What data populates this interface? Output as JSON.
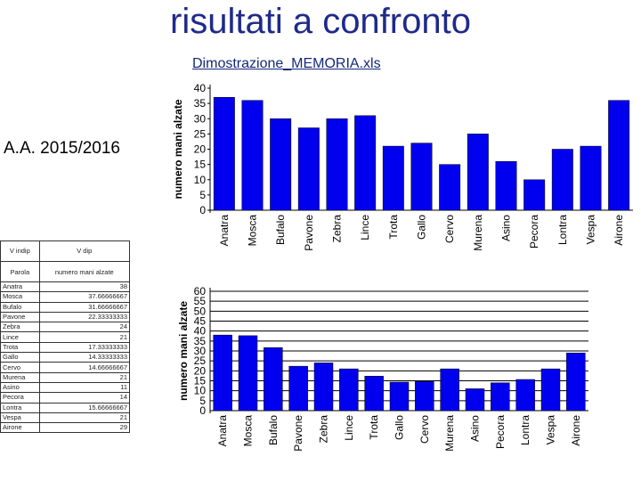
{
  "slide": {
    "title": "risultati a confronto",
    "link_text": "Dimostrazione_MEMORIA.xls",
    "year_label": "A.A. 2015/2016"
  },
  "table": {
    "headers": [
      "V indip",
      "V dip"
    ],
    "subheaders": [
      "Parola",
      "numero mani alzate"
    ],
    "rows": [
      [
        "Anatra",
        "38"
      ],
      [
        "Mosca",
        "37.66666667"
      ],
      [
        "Bufalo",
        "31.66666667"
      ],
      [
        "Pavone",
        "22.33333333"
      ],
      [
        "Zebra",
        "24"
      ],
      [
        "Lince",
        "21"
      ],
      [
        "Trota",
        "17.33333333"
      ],
      [
        "Gallo",
        "14.33333333"
      ],
      [
        "Cervo",
        "14.66666667"
      ],
      [
        "Murena",
        "21"
      ],
      [
        "Asino",
        "11"
      ],
      [
        "Pecora",
        "14"
      ],
      [
        "Lontra",
        "15.66666667"
      ],
      [
        "Vespa",
        "21"
      ],
      [
        "Airone",
        "29"
      ]
    ]
  },
  "chart_data": [
    {
      "type": "bar",
      "categories": [
        "Anatra",
        "Mosca",
        "Bufalo",
        "Pavone",
        "Zebra",
        "Lince",
        "Trota",
        "Gallo",
        "Cervo",
        "Murena",
        "Asino",
        "Pecora",
        "Lontra",
        "Vespa",
        "Airone"
      ],
      "values": [
        37,
        36,
        30,
        27,
        30,
        31,
        21,
        22,
        15,
        25,
        16,
        10,
        20,
        21,
        36
      ],
      "ylabel": "numero mani alzate",
      "ylim": [
        0,
        40
      ],
      "yticks": [
        0,
        5,
        10,
        15,
        20,
        25,
        30,
        35,
        40
      ],
      "grid": false,
      "color": "#0000ee"
    },
    {
      "type": "bar",
      "categories": [
        "Anatra",
        "Mosca",
        "Bufalo",
        "Pavone",
        "Zebra",
        "Lince",
        "Trota",
        "Gallo",
        "Cervo",
        "Murena",
        "Asino",
        "Pecora",
        "Lontra",
        "Vespa",
        "Airone"
      ],
      "values": [
        38,
        37.67,
        31.67,
        22.33,
        24,
        21,
        17.33,
        14.33,
        14.67,
        21,
        11,
        14,
        15.67,
        21,
        29
      ],
      "ylabel": "numero mani alzate",
      "ylim": [
        0,
        60
      ],
      "yticks": [
        0,
        5,
        10,
        15,
        20,
        25,
        30,
        35,
        40,
        45,
        50,
        55,
        60
      ],
      "grid": true,
      "color": "#0000ee"
    }
  ]
}
